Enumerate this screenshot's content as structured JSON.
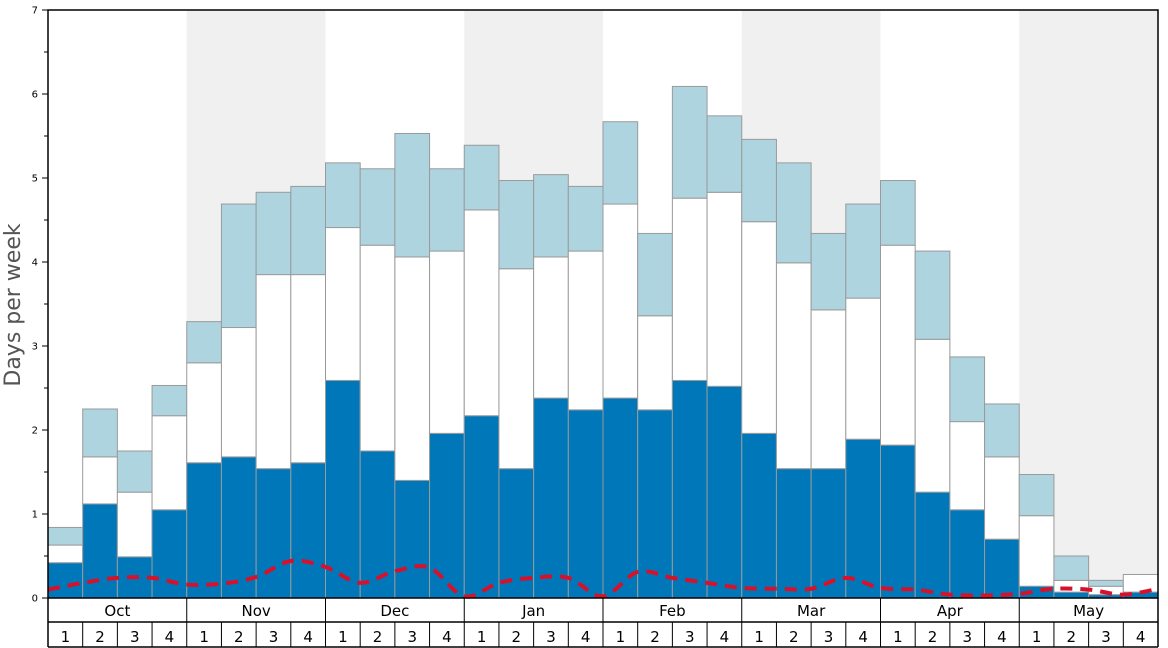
{
  "chart_data": {
    "type": "bar",
    "ylabel": "Days per week",
    "ylim": [
      0,
      7
    ],
    "yticks": [
      "0",
      "1",
      "2",
      "3",
      "4",
      "5",
      "6",
      "7"
    ],
    "months": [
      "Oct",
      "Nov",
      "Dec",
      "Jan",
      "Feb",
      "Mar",
      "Apr",
      "May"
    ],
    "week_labels": [
      "1",
      "2",
      "3",
      "4"
    ],
    "stacking": "stacked",
    "series": [
      {
        "color": "#0077b8",
        "values": [
          0.42,
          1.12,
          0.49,
          1.05,
          1.61,
          1.68,
          1.54,
          1.61,
          2.59,
          1.75,
          1.4,
          1.96,
          2.17,
          1.54,
          2.38,
          2.24,
          2.38,
          2.24,
          2.59,
          2.52,
          1.96,
          1.54,
          1.54,
          1.89,
          1.82,
          1.26,
          1.05,
          0.7,
          0.14,
          0.07,
          0.04,
          0.07
        ]
      },
      {
        "color": "#ffffff",
        "values": [
          0.21,
          0.56,
          0.77,
          1.12,
          1.19,
          1.54,
          2.31,
          2.24,
          1.82,
          2.45,
          2.66,
          2.17,
          2.45,
          2.38,
          1.68,
          1.89,
          2.31,
          1.12,
          2.17,
          2.31,
          2.52,
          2.45,
          1.89,
          1.68,
          2.38,
          1.82,
          1.05,
          0.98,
          0.84,
          0.14,
          0.1,
          0.21
        ]
      },
      {
        "color": "#aed4e0",
        "values": [
          0.21,
          0.57,
          0.49,
          0.36,
          0.49,
          1.47,
          0.98,
          1.05,
          0.77,
          0.91,
          1.47,
          0.98,
          0.77,
          1.05,
          0.98,
          0.77,
          0.98,
          0.98,
          1.33,
          0.91,
          0.98,
          1.19,
          0.91,
          1.12,
          0.77,
          1.05,
          0.77,
          0.63,
          0.49,
          0.29,
          0.07,
          0.0
        ]
      }
    ],
    "line": {
      "color": "#d9102a",
      "style": "dashed",
      "values": [
        0.1,
        0.18,
        0.24,
        0.24,
        0.16,
        0.17,
        0.25,
        0.44,
        0.37,
        0.18,
        0.32,
        0.36,
        0.02,
        0.18,
        0.24,
        0.24,
        0.02,
        0.31,
        0.24,
        0.18,
        0.12,
        0.11,
        0.11,
        0.24,
        0.12,
        0.1,
        0.04,
        0.03,
        0.05,
        0.11,
        0.1,
        0.04,
        0.11
      ]
    },
    "shaded_months": [
      "Nov",
      "Jan",
      "Mar",
      "May"
    ],
    "grid": false
  }
}
